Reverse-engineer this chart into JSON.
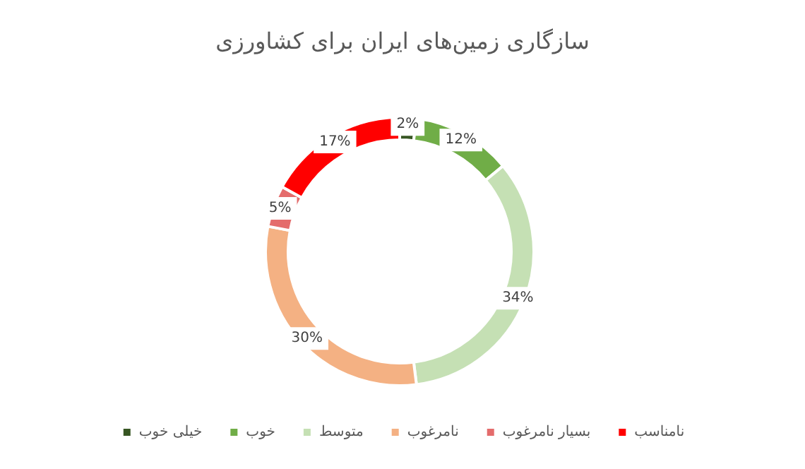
{
  "chart_data": {
    "type": "donut",
    "title": "سازگاری زمین‌های ایران برای کشاورزی",
    "categories": [
      "خیلی خوب",
      "خوب",
      "متوسط",
      "نامرغوب",
      "بسیار نامرغوب",
      "نامناسب"
    ],
    "values": [
      2,
      12,
      34,
      30,
      5,
      17
    ],
    "colors": [
      "#375623",
      "#70ad47",
      "#c5e0b4",
      "#f4b183",
      "#e46c6c",
      "#ff0000"
    ],
    "value_labels": [
      "2%",
      "12%",
      "34%",
      "30%",
      "5%",
      "17%"
    ],
    "legend": "bottom"
  }
}
